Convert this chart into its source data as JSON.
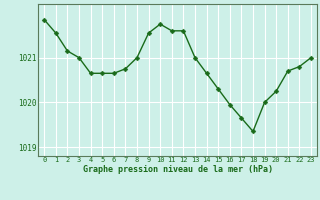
{
  "x": [
    0,
    1,
    2,
    3,
    4,
    5,
    6,
    7,
    8,
    9,
    10,
    11,
    12,
    13,
    14,
    15,
    16,
    17,
    18,
    19,
    20,
    21,
    22,
    23
  ],
  "y": [
    1021.85,
    1021.55,
    1021.15,
    1021.0,
    1020.65,
    1020.65,
    1020.65,
    1020.75,
    1021.0,
    1021.55,
    1021.75,
    1021.6,
    1021.6,
    1021.0,
    1020.65,
    1020.3,
    1019.95,
    1019.65,
    1019.35,
    1020.0,
    1020.25,
    1020.7,
    1020.8,
    1021.0
  ],
  "line_color": "#1a6b1a",
  "marker_color": "#1a6b1a",
  "bg_color": "#cdf0e8",
  "grid_color": "#ffffff",
  "xlabel": "Graphe pression niveau de la mer (hPa)",
  "xlabel_color": "#1a6b1a",
  "tick_color": "#1a6b1a",
  "ylim": [
    1018.8,
    1022.2
  ],
  "yticks": [
    1019,
    1020,
    1021
  ],
  "xticks": [
    0,
    1,
    2,
    3,
    4,
    5,
    6,
    7,
    8,
    9,
    10,
    11,
    12,
    13,
    14,
    15,
    16,
    17,
    18,
    19,
    20,
    21,
    22,
    23
  ],
  "marker_size": 2.5,
  "line_width": 1.0,
  "spine_color": "#5a7a5a"
}
